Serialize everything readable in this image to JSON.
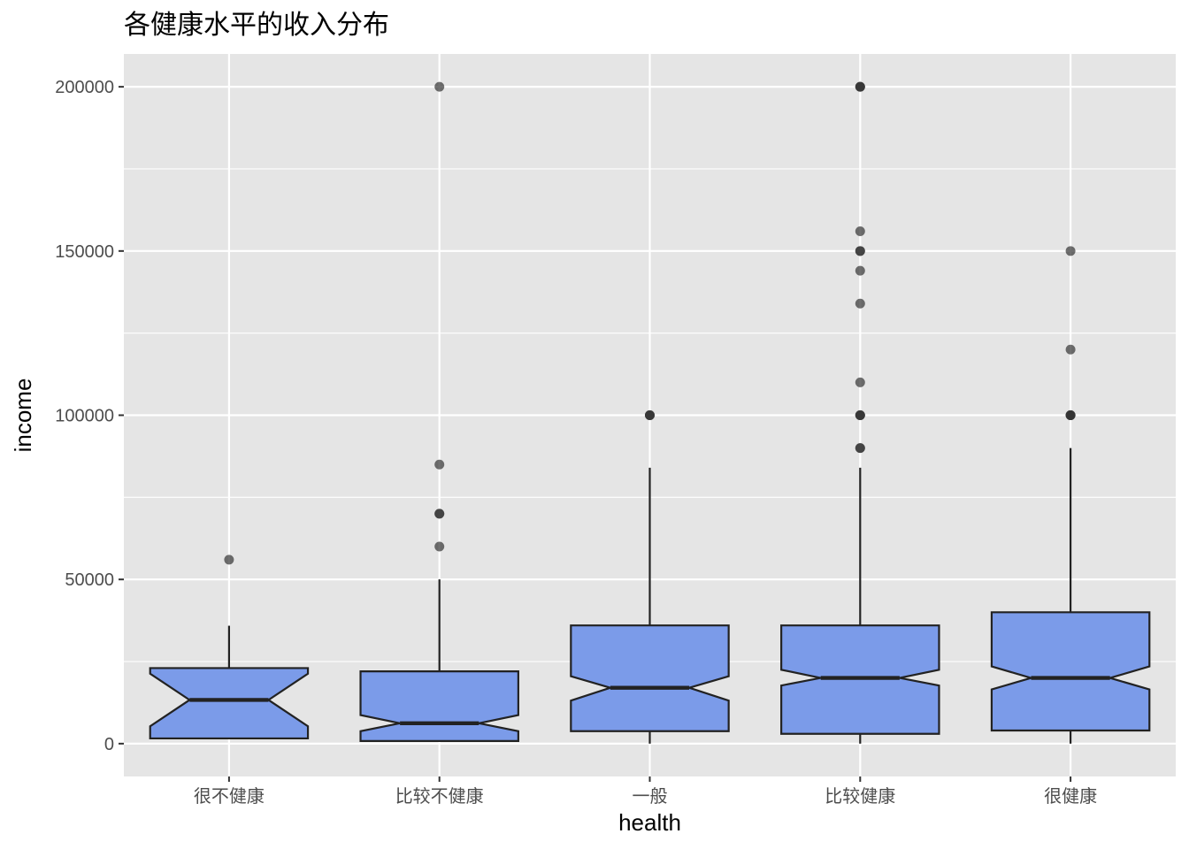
{
  "chart_data": {
    "type": "boxplot",
    "notched": true,
    "title": "各健康水平的收入分布",
    "xlabel": "health",
    "ylabel": "income",
    "ylim": [
      -10000,
      210000
    ],
    "y_ticks": [
      0,
      50000,
      100000,
      150000,
      200000
    ],
    "y_tick_labels": [
      "0",
      "50000",
      "100000",
      "150000",
      "200000"
    ],
    "grid": true,
    "colors": {
      "panel_bg": "#e5e5e5",
      "grid": "#ffffff",
      "box_fill": "#7b9be9",
      "box_line": "#222222",
      "outlier": "#333333"
    },
    "categories": [
      "很不健康",
      "比较不健康",
      "一般",
      "比较健康",
      "很健康"
    ],
    "boxes": [
      {
        "category": "很不健康",
        "whisker_low": 1600,
        "q1": 1600,
        "median": 13300,
        "q3": 23000,
        "whisker_high": 35900,
        "notch_low": 5300,
        "notch_high": 21300,
        "outliers": [
          56000
        ]
      },
      {
        "category": "比较不健康",
        "whisker_low": 800,
        "q1": 800,
        "median": 6200,
        "q3": 22000,
        "whisker_high": 50000,
        "notch_low": 3800,
        "notch_high": 8700,
        "outliers": [
          60000,
          70000,
          70000,
          85000,
          200000
        ]
      },
      {
        "category": "一般",
        "whisker_low": 0,
        "q1": 3800,
        "median": 17000,
        "q3": 36000,
        "whisker_high": 84000,
        "notch_low": 13100,
        "notch_high": 20500,
        "outliers": [
          100000,
          100000,
          100000
        ]
      },
      {
        "category": "比较健康",
        "whisker_low": 0,
        "q1": 3000,
        "median": 20000,
        "q3": 36000,
        "whisker_high": 84000,
        "notch_low": 17700,
        "notch_high": 22500,
        "outliers": [
          90000,
          90000,
          100000,
          100000,
          100000,
          110000,
          134000,
          144000,
          150000,
          150000,
          156000,
          200000,
          200000,
          200000
        ]
      },
      {
        "category": "很健康",
        "whisker_low": 0,
        "q1": 4000,
        "median": 20000,
        "q3": 40000,
        "whisker_high": 90000,
        "notch_low": 16500,
        "notch_high": 23500,
        "outliers": [
          100000,
          100000,
          100000,
          100000,
          120000,
          150000
        ]
      }
    ]
  }
}
